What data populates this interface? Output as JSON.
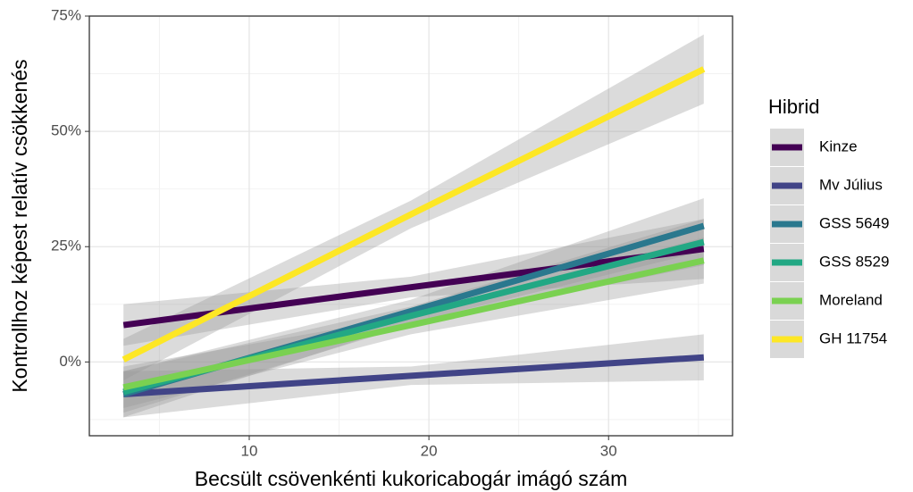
{
  "chart_data": {
    "type": "line",
    "x_label": "Becsült csövenkénti kukoricabogár imágó szám",
    "y_label": "Kontrollhoz képest relatív csökkenés",
    "legend_title": "Hibrid",
    "legend_position": "right",
    "grid": true,
    "xlim": [
      1.1,
      36.9
    ],
    "ylim": [
      -16,
      75
    ],
    "xticks": [
      10,
      20,
      30
    ],
    "yticks": [
      {
        "value": 0,
        "label": "0%"
      },
      {
        "value": 25,
        "label": "25%"
      },
      {
        "value": 50,
        "label": "50%"
      },
      {
        "value": 75,
        "label": "75%"
      }
    ],
    "x_minor_ticks": [
      5,
      15,
      25,
      35
    ],
    "y_minor_ticks": [
      -12.5,
      12.5,
      37.5,
      62.5
    ],
    "x": [
      3,
      19,
      35.3
    ],
    "series": [
      {
        "name": "Kinze",
        "color": "#440154",
        "values": [
          8,
          16.2,
          24.5
        ],
        "lower": [
          3.5,
          14,
          18
        ],
        "upper": [
          12.5,
          18.5,
          31
        ]
      },
      {
        "name": "Mv Július",
        "color": "#414487",
        "values": [
          -7,
          -3,
          1
        ],
        "lower": [
          -12,
          -5,
          -4
        ],
        "upper": [
          -2,
          -1,
          6
        ]
      },
      {
        "name": "GSS 5649",
        "color": "#2A788E",
        "values": [
          -7,
          11,
          29.5
        ],
        "lower": [
          -12,
          8.5,
          24
        ],
        "upper": [
          -2,
          13.5,
          35.5
        ]
      },
      {
        "name": "GSS 8529",
        "color": "#22A884",
        "values": [
          -6.5,
          10,
          26
        ],
        "lower": [
          -11,
          8,
          21
        ],
        "upper": [
          -2,
          12,
          31
        ]
      },
      {
        "name": "Moreland",
        "color": "#7AD151",
        "values": [
          -5.5,
          8,
          22
        ],
        "lower": [
          -10,
          6,
          17
        ],
        "upper": [
          -1,
          10,
          27
        ]
      },
      {
        "name": "GH 11754",
        "color": "#FDE725",
        "values": [
          0.5,
          32,
          63.5
        ],
        "lower": [
          -4,
          29,
          56
        ],
        "upper": [
          5,
          35,
          71
        ]
      }
    ]
  }
}
